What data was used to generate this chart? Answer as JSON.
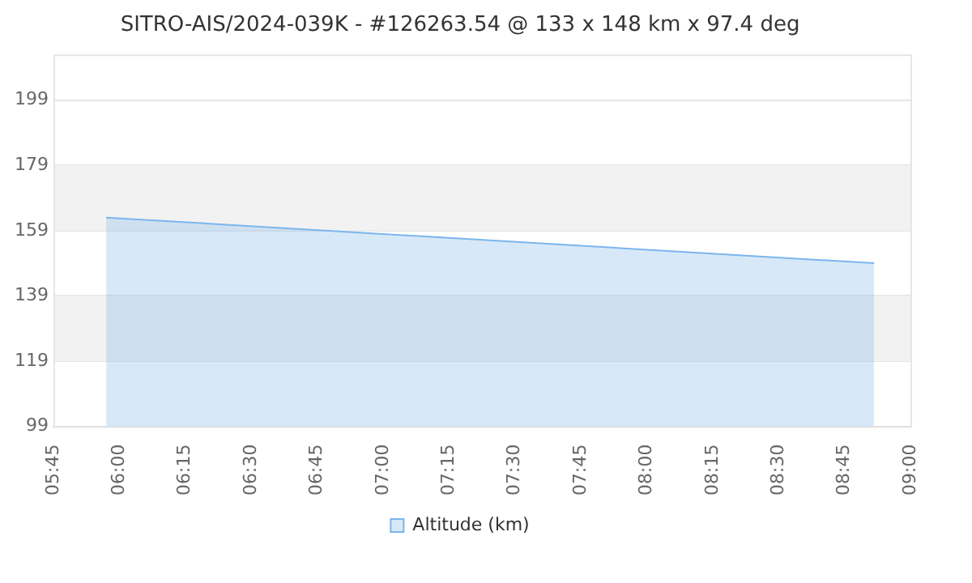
{
  "chart_data": {
    "type": "area",
    "title": "SITRO-AIS/2024-039K - #126263.54 @ 133 x 148 km x 97.4 deg",
    "series": [
      {
        "name": "Altitude (km)",
        "color": "#7cb5ec",
        "x": [
          5.95,
          8.8625
        ],
        "values": [
          163,
          149
        ]
      }
    ],
    "xlim": [
      5.75,
      9
    ],
    "xticks": [
      {
        "value": 5.75,
        "label": "05:45"
      },
      {
        "value": 6,
        "label": "06:00"
      },
      {
        "value": 6.25,
        "label": "06:15"
      },
      {
        "value": 6.5,
        "label": "06:30"
      },
      {
        "value": 6.75,
        "label": "06:45"
      },
      {
        "value": 7,
        "label": "07:00"
      },
      {
        "value": 7.25,
        "label": "07:15"
      },
      {
        "value": 7.5,
        "label": "07:30"
      },
      {
        "value": 7.75,
        "label": "07:45"
      },
      {
        "value": 8,
        "label": "08:00"
      },
      {
        "value": 8.25,
        "label": "08:15"
      },
      {
        "value": 8.5,
        "label": "08:30"
      },
      {
        "value": 8.75,
        "label": "08:45"
      },
      {
        "value": 9,
        "label": "09:00"
      }
    ],
    "ylim": [
      99,
      213
    ],
    "yticks": [
      99,
      119,
      139,
      159,
      179,
      199
    ],
    "bands": [
      {
        "axis": "y",
        "from": 119,
        "to": 139,
        "color": "#f2f2f2"
      },
      {
        "axis": "y",
        "from": 159,
        "to": 179,
        "color": "#f2f2f2"
      }
    ],
    "grid": "y",
    "legend": "bottom",
    "marker": "none"
  }
}
